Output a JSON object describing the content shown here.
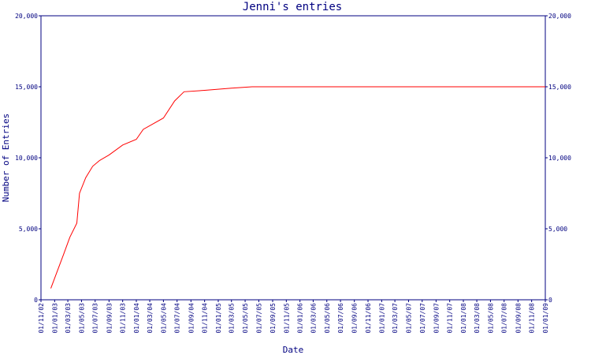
{
  "chart_data": {
    "type": "line",
    "title": "Jenni's entries",
    "xlabel": "Date",
    "ylabel": "Number of Entries",
    "ylim": [
      0,
      20000
    ],
    "y_ticks": [
      {
        "value": 0,
        "label": "0"
      },
      {
        "value": 5000,
        "label": "5,000"
      },
      {
        "value": 10000,
        "label": "10,000"
      },
      {
        "value": 15000,
        "label": "15,000"
      },
      {
        "value": 20000,
        "label": "20,000"
      }
    ],
    "x_ticks": [
      "01/11/02",
      "01/01/03",
      "01/03/03",
      "01/05/03",
      "01/07/03",
      "01/09/03",
      "01/11/03",
      "01/01/04",
      "01/03/04",
      "01/05/04",
      "01/07/04",
      "01/09/04",
      "01/11/04",
      "01/01/05",
      "01/03/05",
      "01/05/05",
      "01/07/05",
      "01/09/05",
      "01/11/05",
      "01/01/06",
      "01/03/06",
      "01/05/06",
      "01/07/06",
      "01/09/06",
      "01/11/06",
      "01/01/07",
      "01/03/07",
      "01/05/07",
      "01/07/07",
      "01/09/07",
      "01/11/07",
      "01/01/08",
      "01/03/08",
      "01/05/08",
      "01/07/08",
      "01/09/08",
      "01/11/08",
      "01/01/09"
    ],
    "series": [
      {
        "color": "#ff0000",
        "points": [
          {
            "x": "2002-12-15",
            "y": 800
          },
          {
            "x": "2003-01-10",
            "y": 1900
          },
          {
            "x": "2003-02-10",
            "y": 3200
          },
          {
            "x": "2003-03-10",
            "y": 4400
          },
          {
            "x": "2003-04-10",
            "y": 5400
          },
          {
            "x": "2003-04-22",
            "y": 7500
          },
          {
            "x": "2003-05-20",
            "y": 8600
          },
          {
            "x": "2003-06-20",
            "y": 9400
          },
          {
            "x": "2003-07-20",
            "y": 9800
          },
          {
            "x": "2003-09-01",
            "y": 10200
          },
          {
            "x": "2003-11-01",
            "y": 10900
          },
          {
            "x": "2004-01-01",
            "y": 11300
          },
          {
            "x": "2004-02-01",
            "y": 12000
          },
          {
            "x": "2004-05-01",
            "y": 12800
          },
          {
            "x": "2004-06-20",
            "y": 14000
          },
          {
            "x": "2004-08-01",
            "y": 14650
          },
          {
            "x": "2004-11-01",
            "y": 14750
          },
          {
            "x": "2005-03-01",
            "y": 14900
          },
          {
            "x": "2005-06-01",
            "y": 15000
          },
          {
            "x": "2009-01-01",
            "y": 15000
          }
        ]
      }
    ],
    "grid": false
  },
  "colors": {
    "axis": "#000080",
    "line": "#ff0000",
    "text": "#000080",
    "background": "#ffffff"
  }
}
